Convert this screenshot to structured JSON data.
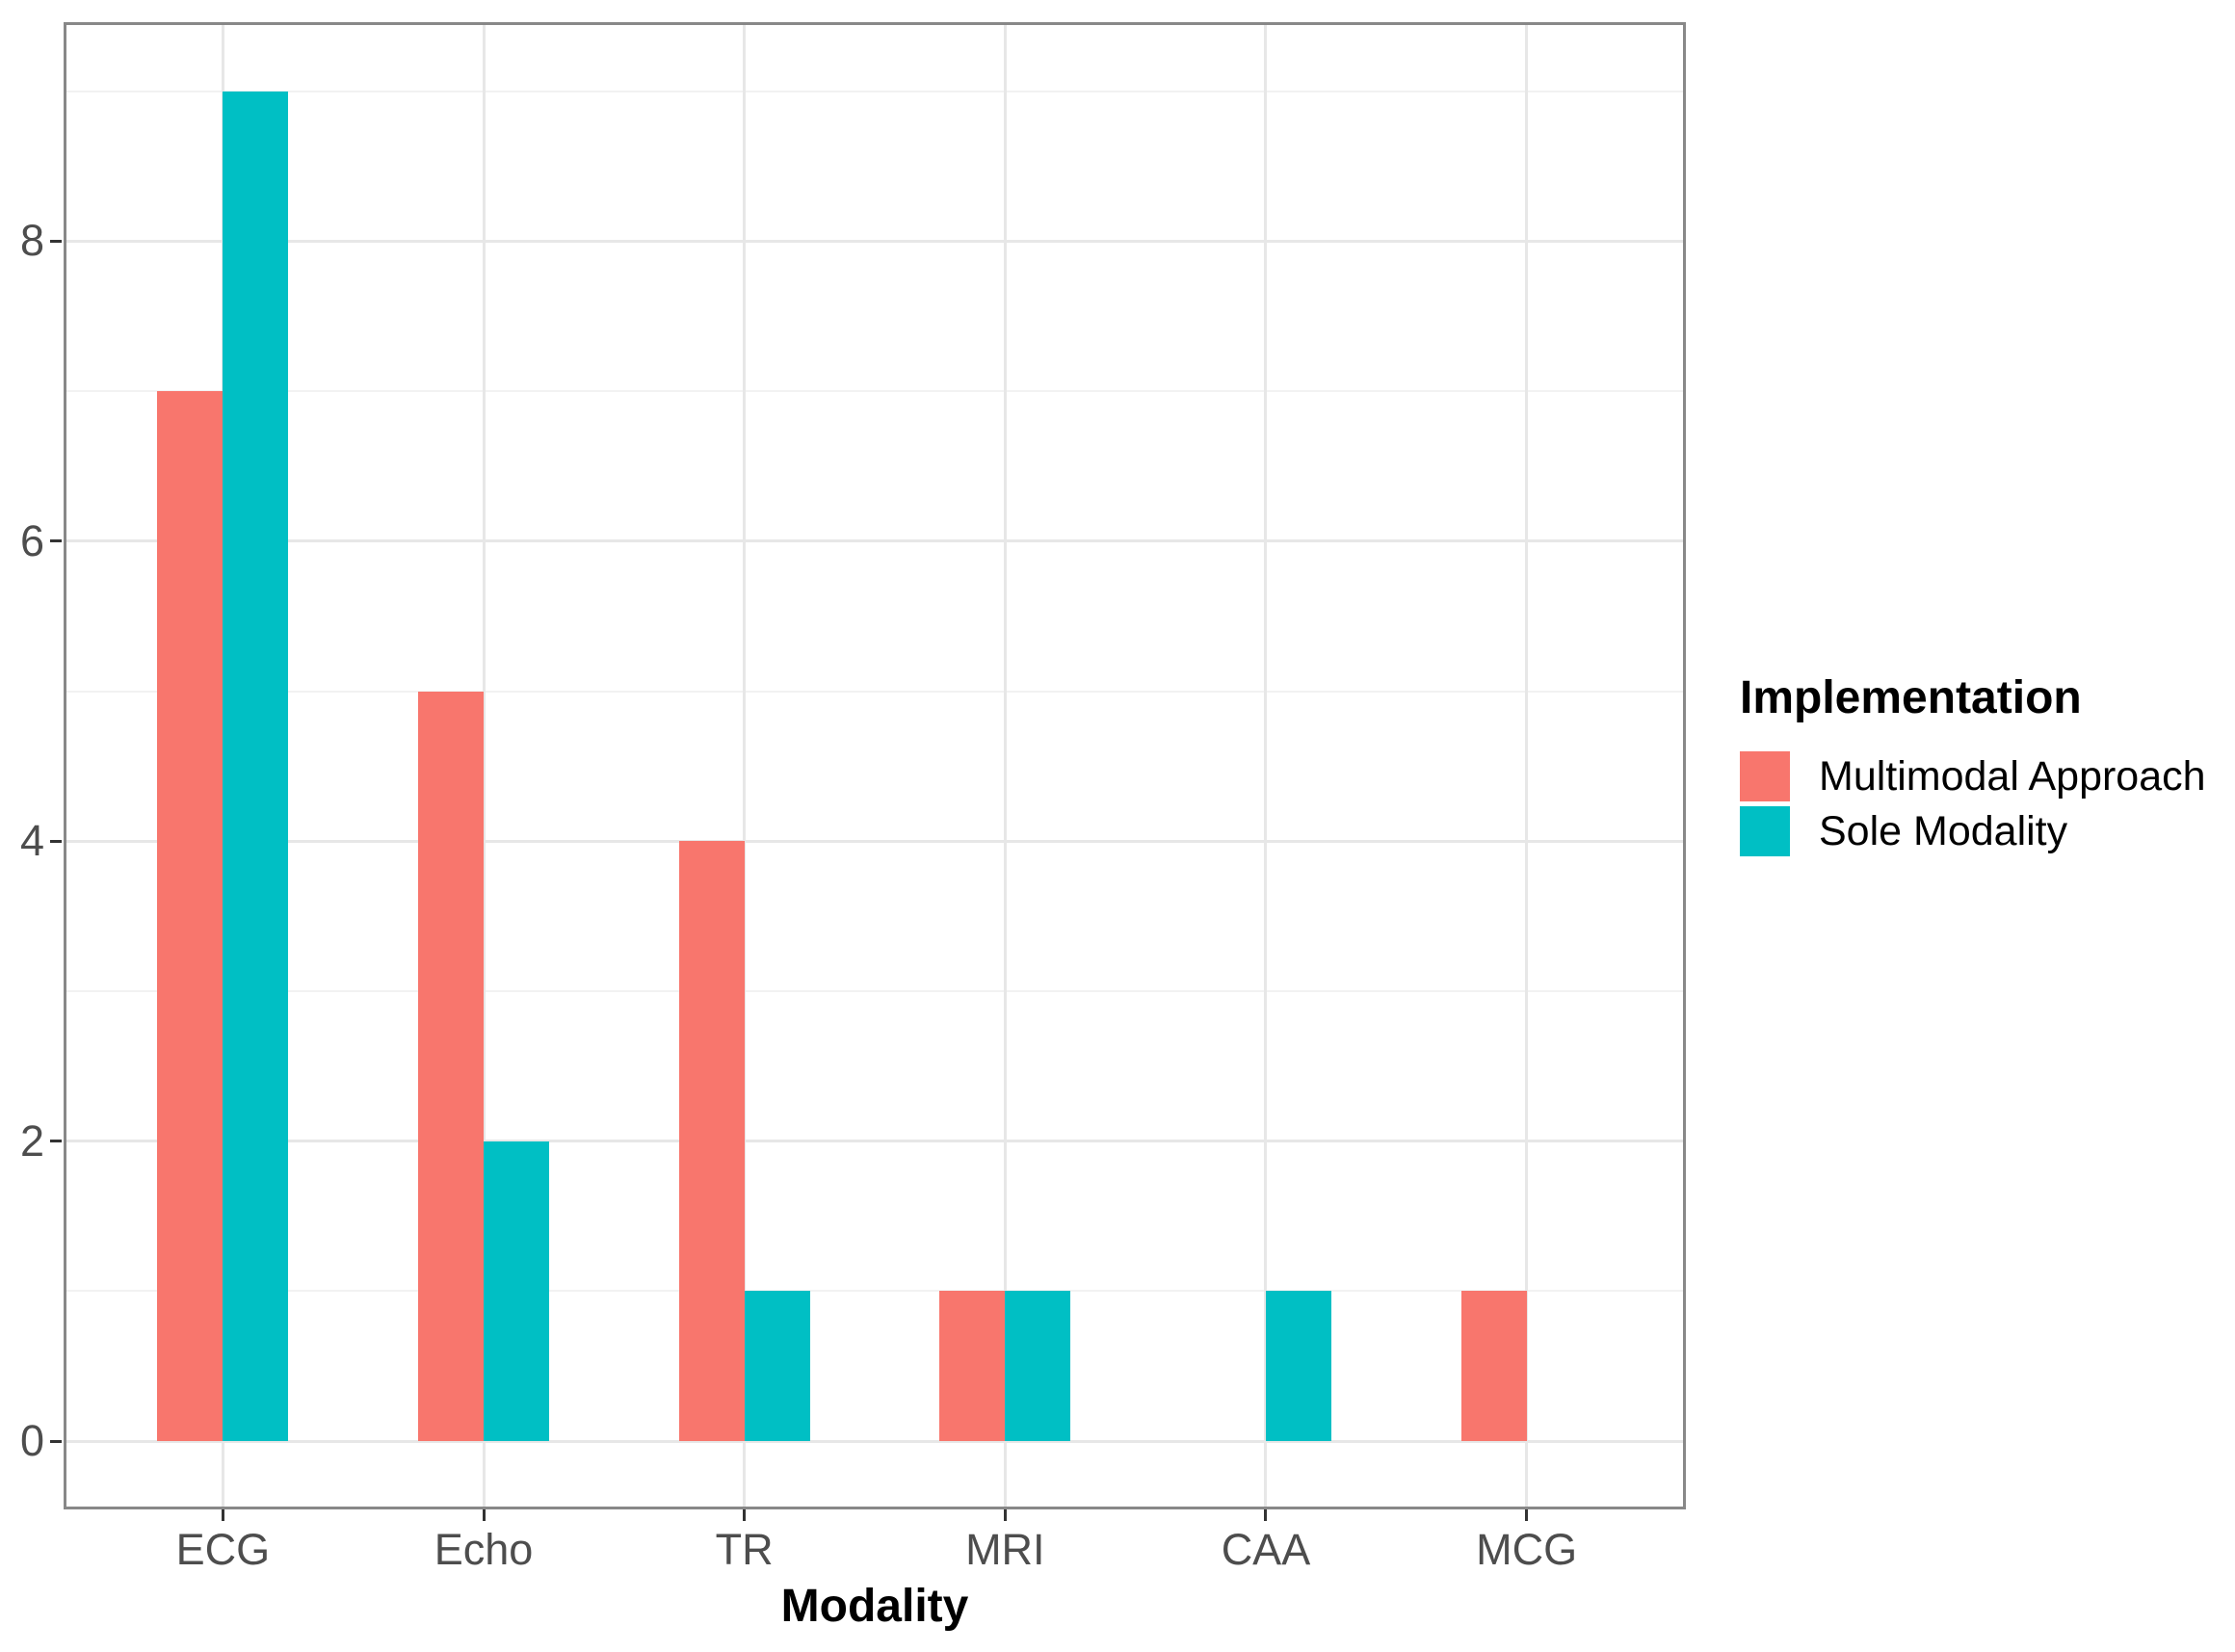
{
  "chart_data": {
    "type": "bar",
    "title": "",
    "xlabel": "Modality",
    "ylabel": "",
    "categories": [
      "ECG",
      "Echo",
      "TR",
      "MRI",
      "CAA",
      "MCG"
    ],
    "series": [
      {
        "name": "Multimodal Approach",
        "color": "#F8766D",
        "values": [
          7,
          5,
          4,
          1,
          0,
          1
        ]
      },
      {
        "name": "Sole Modality",
        "color": "#00BFC4",
        "values": [
          9,
          2,
          1,
          1,
          1,
          0
        ]
      }
    ],
    "ylim": [
      0,
      9
    ],
    "yticks": [
      0,
      2,
      4,
      6,
      8
    ],
    "yminorticks": [
      1,
      3,
      5,
      7,
      9
    ],
    "bar_layout": "dodge",
    "grid": "on",
    "legend": {
      "title": "Implementation",
      "position": "right",
      "entries": [
        "Multimodal Approach",
        "Sole Modality"
      ]
    },
    "colors": {
      "panel_border": "#888888",
      "grid_major": "#E7E7E7",
      "grid_minor": "#F2F2F2",
      "tick_mark": "#333333",
      "tick_label": "#4D4D4D",
      "axis_title": "#000000"
    }
  }
}
